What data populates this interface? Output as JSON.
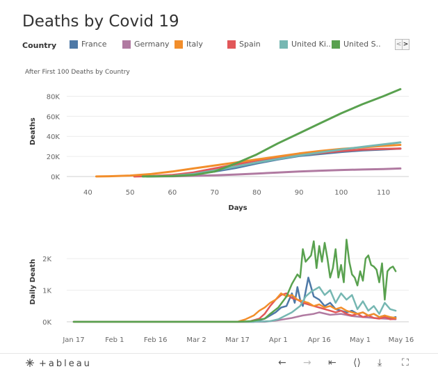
{
  "title": "Deaths by Covid 19",
  "legend": {
    "title": "Country",
    "items": [
      {
        "label": "France",
        "color": "#4e79a7"
      },
      {
        "label": "Germany",
        "color": "#b07aa1"
      },
      {
        "label": "Italy",
        "color": "#f28e2b"
      },
      {
        "label": "Spain",
        "color": "#e15759"
      },
      {
        "label": "United Ki..",
        "color": "#76b7b2"
      },
      {
        "label": "United S..",
        "color": "#59a14f"
      }
    ],
    "nav_prev": "<",
    "nav_next": ">"
  },
  "footer": {
    "logo": "⁜+ab|eau",
    "tools": [
      "undo-icon",
      "redo-icon",
      "revert-icon",
      "share-icon",
      "download-icon",
      "fullscreen-icon"
    ]
  },
  "chart_data": [
    {
      "type": "line",
      "title": "After First 100 Deaths by Country",
      "xlabel": "Days",
      "ylabel": "Deaths",
      "xlim": [
        35,
        116
      ],
      "ylim": [
        0,
        90000
      ],
      "xticks": [
        "40",
        "50",
        "60",
        "70",
        "80",
        "90",
        "100",
        "110"
      ],
      "yticks": [
        "0K",
        "20K",
        "40K",
        "60K",
        "80K"
      ],
      "series": [
        {
          "name": "United S..",
          "color": "#59a14f",
          "x": [
            53,
            60,
            65,
            70,
            75,
            80,
            85,
            90,
            95,
            100,
            105,
            110,
            114
          ],
          "y": [
            100,
            400,
            1500,
            5000,
            13000,
            22000,
            33000,
            43000,
            53000,
            63000,
            72000,
            80000,
            87000
          ]
        },
        {
          "name": "United Ki..",
          "color": "#76b7b2",
          "x": [
            54,
            60,
            65,
            70,
            75,
            80,
            85,
            90,
            95,
            100,
            105,
            110,
            114
          ],
          "y": [
            100,
            600,
            2500,
            6000,
            10000,
            14000,
            17500,
            21000,
            24000,
            27000,
            29500,
            32000,
            34000
          ]
        },
        {
          "name": "Italy",
          "color": "#f28e2b",
          "x": [
            42,
            45,
            50,
            55,
            60,
            65,
            70,
            75,
            80,
            85,
            90,
            95,
            100,
            105,
            110,
            114
          ],
          "y": [
            100,
            300,
            1000,
            2500,
            5000,
            8000,
            11000,
            14000,
            17000,
            20000,
            23000,
            25500,
            27500,
            29000,
            30500,
            31500
          ]
        },
        {
          "name": "Spain",
          "color": "#e15759",
          "x": [
            51,
            55,
            60,
            65,
            70,
            75,
            80,
            85,
            90,
            95,
            100,
            105,
            110,
            114
          ],
          "y": [
            100,
            400,
            1500,
            4000,
            8000,
            12000,
            16000,
            19000,
            21500,
            23500,
            25500,
            26800,
            27500,
            27800
          ]
        },
        {
          "name": "France",
          "color": "#4e79a7",
          "x": [
            54,
            60,
            65,
            70,
            75,
            80,
            85,
            90,
            95,
            100,
            105,
            110,
            114
          ],
          "y": [
            100,
            800,
            2500,
            5000,
            8500,
            13000,
            17000,
            20500,
            22500,
            24500,
            26000,
            27000,
            27800
          ]
        },
        {
          "name": "Germany",
          "color": "#b07aa1",
          "x": [
            54,
            60,
            65,
            70,
            75,
            80,
            85,
            90,
            95,
            100,
            105,
            110,
            114
          ],
          "y": [
            100,
            300,
            700,
            1200,
            2000,
            3000,
            4000,
            5000,
            5800,
            6500,
            7000,
            7500,
            8000
          ]
        }
      ]
    },
    {
      "type": "line",
      "title": "",
      "xlabel": "",
      "ylabel": "Daily Death",
      "xlim": [
        0,
        119
      ],
      "ylim": [
        0,
        2750
      ],
      "xticks": [
        {
          "label": "Jan 17",
          "day": 0
        },
        {
          "label": "Feb 1",
          "day": 15
        },
        {
          "label": "Feb 16",
          "day": 30
        },
        {
          "label": "Mar 2",
          "day": 45
        },
        {
          "label": "Mar 17",
          "day": 60
        },
        {
          "label": "Apr 1",
          "day": 75
        },
        {
          "label": "Apr 16",
          "day": 90
        },
        {
          "label": "May 1",
          "day": 105
        },
        {
          "label": "May 16",
          "day": 120
        }
      ],
      "yticks": [
        "0K",
        "1K",
        "2K"
      ],
      "series": [
        {
          "name": "United S..",
          "color": "#59a14f",
          "x": [
            0,
            60,
            65,
            70,
            72,
            75,
            78,
            80,
            82,
            83,
            84,
            85,
            86,
            87,
            88,
            89,
            90,
            91,
            92,
            93,
            94,
            95,
            96,
            97,
            98,
            99,
            100,
            101,
            102,
            103,
            104,
            105,
            106,
            107,
            108,
            109,
            110,
            111,
            112,
            113,
            114,
            115,
            116,
            117,
            118
          ],
          "y": [
            0,
            0,
            20,
            100,
            250,
            450,
            800,
            1200,
            1500,
            1400,
            2300,
            1900,
            2000,
            2100,
            2550,
            1700,
            2400,
            1900,
            2500,
            2000,
            1400,
            1700,
            2300,
            1400,
            1800,
            1250,
            2600,
            1900,
            1500,
            1400,
            1150,
            1600,
            1300,
            2000,
            2100,
            1800,
            1750,
            1650,
            1250,
            1850,
            700,
            1600,
            1700,
            1750,
            1600
          ]
        },
        {
          "name": "United Ki..",
          "color": "#76b7b2",
          "x": [
            0,
            65,
            72,
            75,
            80,
            83,
            85,
            87,
            90,
            92,
            94,
            96,
            98,
            100,
            102,
            104,
            106,
            108,
            110,
            112,
            114,
            116,
            118
          ],
          "y": [
            0,
            0,
            20,
            80,
            300,
            500,
            800,
            950,
            1100,
            850,
            1000,
            600,
            900,
            700,
            850,
            400,
            650,
            350,
            500,
            250,
            600,
            400,
            350
          ]
        },
        {
          "name": "Italy",
          "color": "#f28e2b",
          "x": [
            0,
            60,
            63,
            66,
            68,
            70,
            72,
            74,
            76,
            78,
            80,
            82,
            84,
            86,
            88,
            90,
            92,
            94,
            96,
            98,
            100,
            102,
            104,
            106,
            108,
            110,
            112,
            114,
            116,
            118
          ],
          "y": [
            0,
            0,
            80,
            200,
            350,
            450,
            600,
            700,
            900,
            800,
            850,
            700,
            650,
            600,
            500,
            550,
            450,
            500,
            400,
            450,
            350,
            300,
            250,
            300,
            200,
            250,
            150,
            200,
            150,
            120
          ]
        },
        {
          "name": "Spain",
          "color": "#e15759",
          "x": [
            0,
            64,
            68,
            70,
            72,
            74,
            76,
            78,
            80,
            82,
            84,
            86,
            88,
            90,
            92,
            94,
            96,
            98,
            100,
            102,
            104,
            106,
            108,
            110,
            112,
            114,
            116,
            118
          ],
          "y": [
            0,
            0,
            100,
            250,
            500,
            700,
            850,
            900,
            750,
            700,
            600,
            550,
            500,
            450,
            400,
            350,
            300,
            350,
            250,
            200,
            250,
            150,
            200,
            120,
            100,
            150,
            80,
            100
          ]
        },
        {
          "name": "France",
          "color": "#4e79a7",
          "x": [
            0,
            66,
            70,
            74,
            76,
            78,
            80,
            81,
            82,
            83,
            84,
            86,
            88,
            90,
            92,
            94,
            96,
            98,
            100,
            102,
            104,
            106,
            108,
            110,
            112,
            114,
            116,
            118
          ],
          "y": [
            0,
            0,
            100,
            300,
            450,
            500,
            900,
            600,
            1100,
            700,
            500,
            1400,
            800,
            700,
            500,
            600,
            400,
            350,
            300,
            350,
            250,
            300,
            200,
            250,
            150,
            200,
            100,
            150
          ]
        },
        {
          "name": "Germany",
          "color": "#b07aa1",
          "x": [
            0,
            70,
            75,
            80,
            84,
            88,
            90,
            94,
            98,
            102,
            106,
            110,
            114,
            118
          ],
          "y": [
            0,
            0,
            50,
            120,
            200,
            250,
            300,
            220,
            250,
            180,
            150,
            120,
            100,
            80
          ]
        }
      ]
    }
  ]
}
